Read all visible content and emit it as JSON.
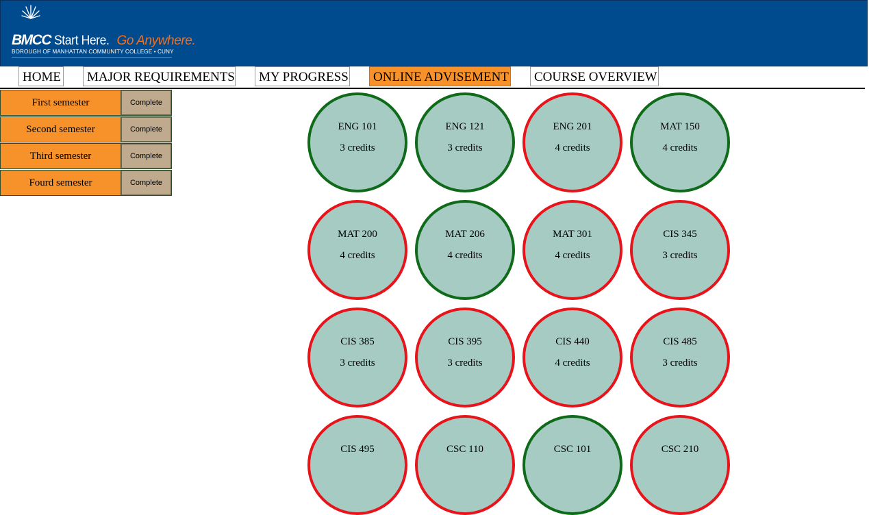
{
  "logo": {
    "brand": "BMCC",
    "tagline_start": "Start Here.",
    "tagline_go": "Go Anywhere.",
    "subtitle": "BOROUGH OF MANHATTAN COMMUNITY COLLEGE • CUNY"
  },
  "nav": [
    {
      "label": "HOME",
      "active": false
    },
    {
      "label": "MAJOR REQUIREMENTS",
      "active": false
    },
    {
      "label": "MY PROGRESS",
      "active": false
    },
    {
      "label": "ONLINE ADVISEMENT",
      "active": true
    },
    {
      "label": "COURSE OVERVIEW",
      "active": false
    }
  ],
  "semesters": [
    {
      "label": "First semester",
      "button": "Complete"
    },
    {
      "label": "Second semester",
      "button": "Complete"
    },
    {
      "label": "Third semester",
      "button": "Complete"
    },
    {
      "label": "Fourd semester",
      "button": "Complete"
    }
  ],
  "colors": {
    "header": "#004b8d",
    "accent_orange": "#f7922a",
    "course_fill": "#a6cbc3",
    "status_complete": "#0f6b1a",
    "status_incomplete": "#e8141b"
  },
  "courses": [
    {
      "code": "ENG 101",
      "credits": "3 credits",
      "status": "complete"
    },
    {
      "code": "ENG 121",
      "credits": "3 credits",
      "status": "complete"
    },
    {
      "code": "ENG 201",
      "credits": "4 credits",
      "status": "incomplete"
    },
    {
      "code": "MAT 150",
      "credits": "4 credits",
      "status": "complete"
    },
    {
      "code": "MAT 200",
      "credits": "4 credits",
      "status": "incomplete"
    },
    {
      "code": "MAT 206",
      "credits": "4 credits",
      "status": "complete"
    },
    {
      "code": "MAT 301",
      "credits": "4 credits",
      "status": "incomplete"
    },
    {
      "code": "CIS 345",
      "credits": "3 credits",
      "status": "incomplete"
    },
    {
      "code": "CIS 385",
      "credits": "3 credits",
      "status": "incomplete"
    },
    {
      "code": "CIS 395",
      "credits": "3 credits",
      "status": "incomplete"
    },
    {
      "code": "CIS 440",
      "credits": "4 credits",
      "status": "incomplete"
    },
    {
      "code": "CIS 485",
      "credits": "3 credits",
      "status": "incomplete"
    },
    {
      "code": "CIS 495",
      "credits": "",
      "status": "incomplete"
    },
    {
      "code": "CSC 110",
      "credits": "",
      "status": "incomplete"
    },
    {
      "code": "CSC 101",
      "credits": "",
      "status": "complete"
    },
    {
      "code": "CSC 210",
      "credits": "",
      "status": "incomplete"
    }
  ]
}
